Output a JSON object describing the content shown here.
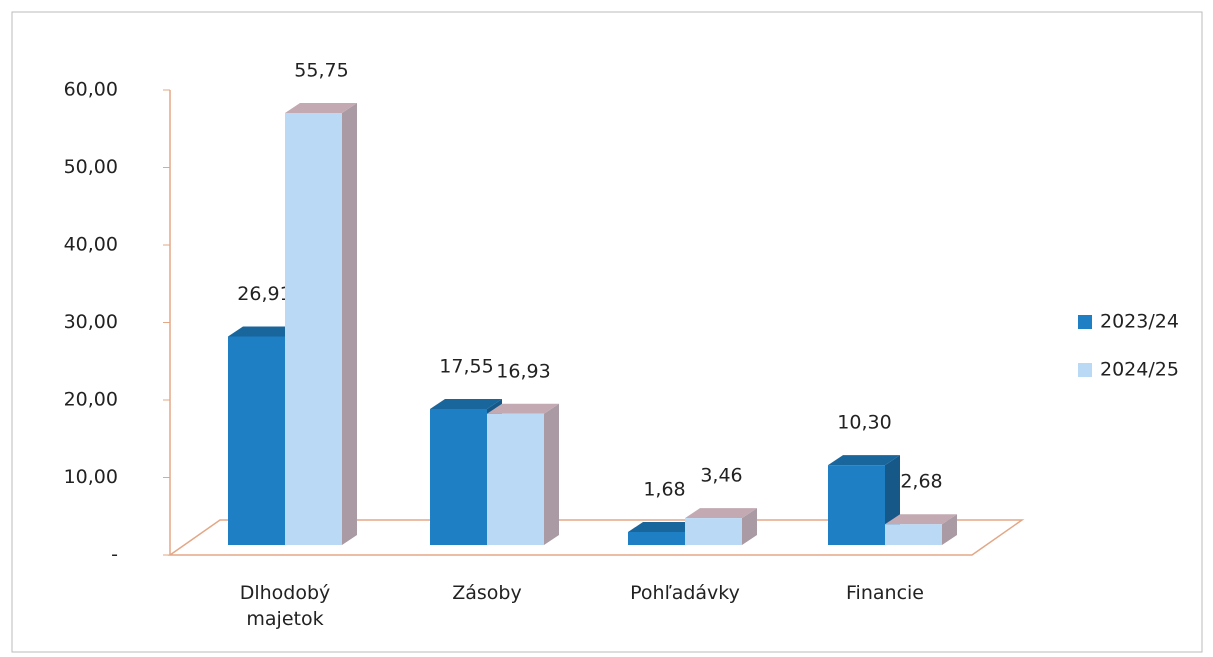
{
  "chart_data": {
    "type": "bar3d",
    "categories": [
      "Dlhodobý majetok",
      "Zásoby",
      "Pohľadávky",
      "Financie"
    ],
    "series": [
      {
        "name": "2023/24",
        "color": "#1f7fc4",
        "values": [
          26.91,
          17.55,
          1.68,
          10.3
        ],
        "value_labels": [
          "26,91",
          "17,55",
          "1,68",
          "10,30"
        ]
      },
      {
        "name": "2024/25",
        "color": "#b9d9f5",
        "values": [
          55.75,
          16.93,
          3.46,
          2.68
        ],
        "value_labels": [
          "55,75",
          "16,93",
          "3,46",
          "2,68"
        ]
      }
    ],
    "ylim": [
      0,
      60
    ],
    "yticks": [
      {
        "value": 0,
        "label": "-"
      },
      {
        "value": 10,
        "label": "10,00"
      },
      {
        "value": 20,
        "label": "20,00"
      },
      {
        "value": 30,
        "label": "30,00"
      },
      {
        "value": 40,
        "label": "40,00"
      },
      {
        "value": 50,
        "label": "50,00"
      },
      {
        "value": 60,
        "label": "60,00"
      }
    ],
    "legend": "right"
  }
}
